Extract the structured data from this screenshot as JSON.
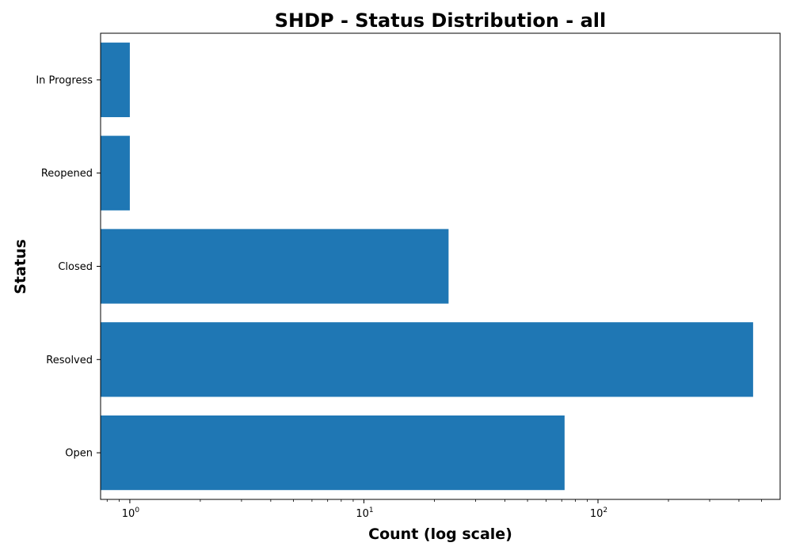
{
  "chart_data": {
    "type": "bar",
    "orientation": "horizontal",
    "title": "SHDP - Status Distribution - all",
    "xlabel": "Count (log scale)",
    "ylabel": "Status",
    "x_scale": "log",
    "xlim": [
      0.75,
      600
    ],
    "categories": [
      "Open",
      "Resolved",
      "Closed",
      "Reopened",
      "In Progress"
    ],
    "values": [
      72,
      460,
      23,
      1,
      1
    ],
    "x_ticks": [
      {
        "base": "10",
        "exp": "0",
        "value": 1
      },
      {
        "base": "10",
        "exp": "1",
        "value": 10
      },
      {
        "base": "10",
        "exp": "2",
        "value": 100
      }
    ],
    "bar_color": "#1f77b4",
    "grid": false
  }
}
